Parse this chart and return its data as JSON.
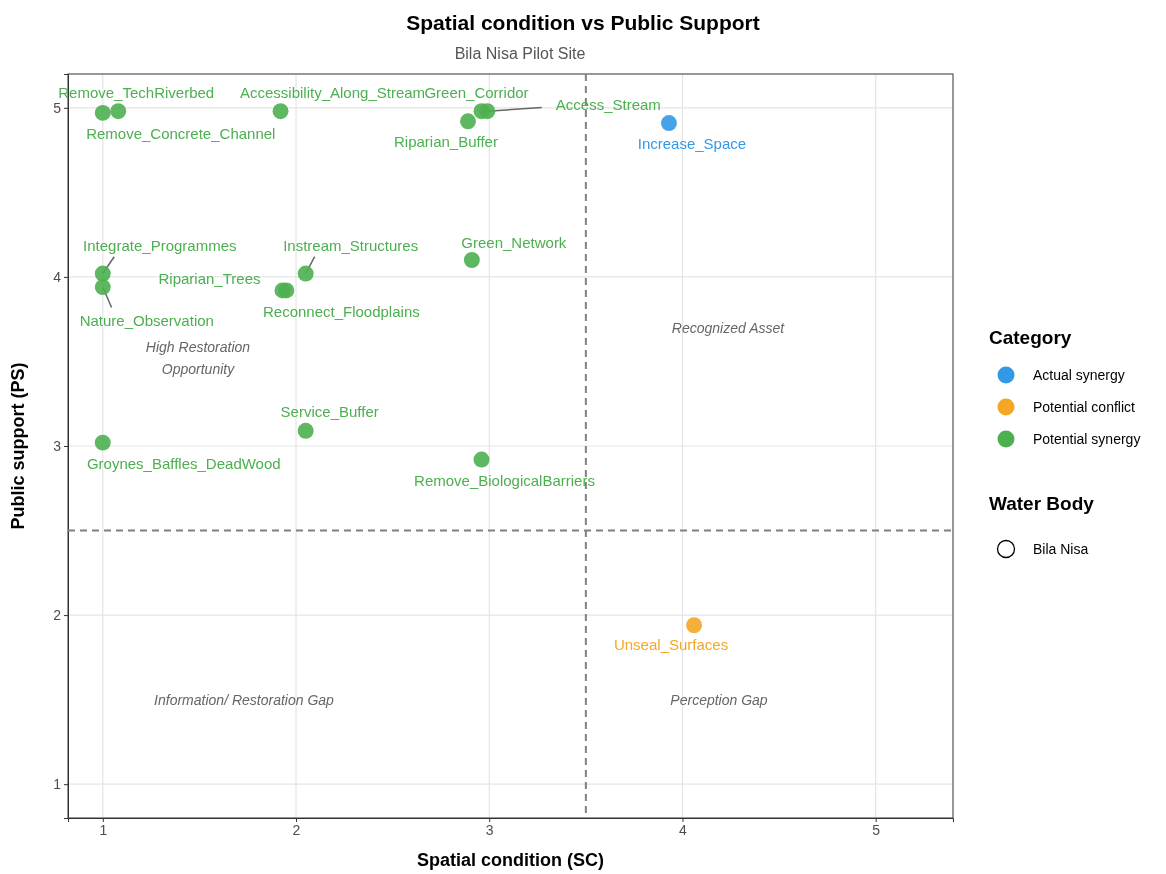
{
  "chart_data": {
    "type": "scatter",
    "title": "Spatial condition vs Public Support",
    "subtitle": "Bila Nisa Pilot Site",
    "xlabel": "Spatial condition (SC)",
    "ylabel": "Public support (PS)",
    "legend_title": "Category",
    "xlim": [
      0.82,
      5.4
    ],
    "xticks": [
      1,
      2,
      3,
      4,
      5
    ],
    "ylim": [
      0.8,
      5.2
    ],
    "yticks": [
      1,
      2,
      3,
      4,
      5
    ],
    "grid": true,
    "legend": "right",
    "marker": "circle",
    "ref_lines": [
      {
        "axis": "x",
        "value": 3.5,
        "color": "#808080",
        "line_style": "dashed"
      },
      {
        "axis": "y",
        "value": 2.5,
        "color": "#808080",
        "line_style": "dashed"
      }
    ],
    "series": [
      {
        "name": "Actual synergy",
        "color": "#3399e6",
        "x": [
          3.93
        ],
        "values": [
          4.91
        ],
        "value_labels": [
          "Increase_Space"
        ]
      },
      {
        "name": "Potential conflict",
        "color": "#f5a623",
        "x": [
          4.06
        ],
        "values": [
          1.94
        ],
        "value_labels": [
          "Unseal_Surfaces"
        ]
      },
      {
        "name": "Potential synergy",
        "color": "#4caf50",
        "x": [
          1.08,
          1.0,
          1.92,
          2.96,
          2.99,
          2.89,
          1.0,
          1.0,
          2.05,
          1.93,
          1.95,
          2.91,
          2.05,
          1.0,
          2.96
        ],
        "values": [
          4.98,
          4.97,
          4.98,
          4.98,
          4.98,
          4.92,
          4.02,
          3.94,
          4.02,
          3.92,
          3.92,
          4.1,
          3.09,
          3.02,
          2.92
        ],
        "value_labels": [
          "Remove_TechRiverbed",
          "Remove_Concrete_Channel",
          "Accessibility_Along_Stream",
          "Green_Corridor",
          "Access_Stream",
          "Riparian_Buffer",
          "Integrate_Programmes",
          "Nature_Observation",
          "Instream_Structures",
          "Riparian_Trees",
          "Reconnect_Floodplains",
          "Green_Network",
          "Service_Buffer",
          "Groynes_Baffles_DeadWood",
          "Remove_BiologicalBarriers"
        ]
      }
    ],
    "annotations": [
      "High Restoration\nOpportunity",
      "Recognized Asset",
      "Information/ Restoration Gap",
      "Perception Gap",
      "Water Body",
      "Bila Nisa"
    ]
  }
}
